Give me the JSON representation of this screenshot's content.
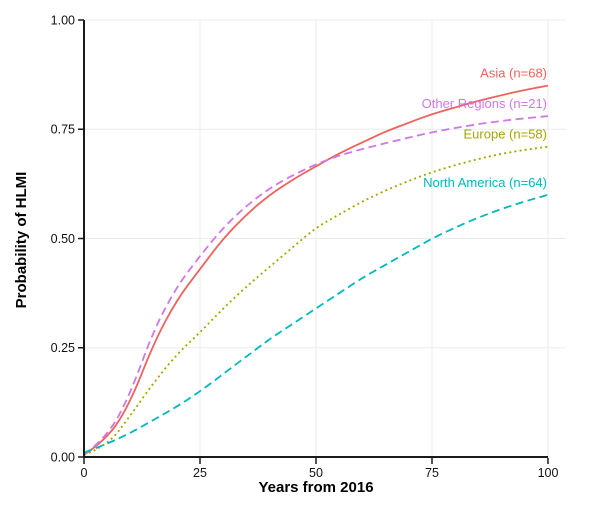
{
  "chart_data": {
    "type": "line",
    "xlabel": "Years from 2016",
    "ylabel": "Probability of HLMI",
    "xlim": [
      0,
      100
    ],
    "ylim": [
      0,
      1
    ],
    "x_tick_labels": [
      "0",
      "25",
      "50",
      "75",
      "100"
    ],
    "x_tick_values": [
      0,
      25,
      50,
      75,
      100
    ],
    "y_tick_labels": [
      "0.00",
      "0.25",
      "0.50",
      "0.75",
      "1.00"
    ],
    "y_tick_values": [
      0,
      0.25,
      0.5,
      0.75,
      1.0
    ],
    "grid": true,
    "legend_position": "inline-right",
    "axis_color": "#1a1a1a",
    "gridline_color": "#ebebeb",
    "x": [
      0,
      5,
      10,
      15,
      20,
      25,
      30,
      35,
      40,
      45,
      50,
      55,
      60,
      65,
      70,
      75,
      80,
      85,
      90,
      95,
      100
    ],
    "series": [
      {
        "name": "Asia",
        "label": "Asia (n=68)",
        "color": "#ED625D",
        "style": "solid",
        "values": [
          0.005,
          0.04,
          0.125,
          0.26,
          0.36,
          0.43,
          0.5,
          0.555,
          0.6,
          0.635,
          0.665,
          0.695,
          0.72,
          0.745,
          0.765,
          0.785,
          0.8,
          0.815,
          0.828,
          0.84,
          0.85
        ]
      },
      {
        "name": "Other Regions",
        "label": "Other Regions (n=21)",
        "color": "#CF78E6",
        "style": "dashed",
        "values": [
          0.005,
          0.045,
          0.145,
          0.29,
          0.39,
          0.46,
          0.525,
          0.575,
          0.615,
          0.645,
          0.67,
          0.69,
          0.705,
          0.718,
          0.731,
          0.743,
          0.753,
          0.762,
          0.769,
          0.775,
          0.78
        ]
      },
      {
        "name": "Europe",
        "label": "Europe (n=58)",
        "color": "#A3A500",
        "style": "dotted",
        "values": [
          0.005,
          0.025,
          0.095,
          0.17,
          0.235,
          0.285,
          0.34,
          0.39,
          0.435,
          0.48,
          0.525,
          0.555,
          0.585,
          0.61,
          0.632,
          0.652,
          0.668,
          0.682,
          0.694,
          0.703,
          0.71
        ]
      },
      {
        "name": "North America",
        "label": "North America (n=64)",
        "color": "#00B8C2",
        "style": "dashed",
        "values": [
          0.01,
          0.03,
          0.055,
          0.085,
          0.115,
          0.15,
          0.19,
          0.23,
          0.27,
          0.305,
          0.34,
          0.375,
          0.41,
          0.44,
          0.47,
          0.5,
          0.525,
          0.548,
          0.568,
          0.585,
          0.6
        ]
      }
    ]
  }
}
